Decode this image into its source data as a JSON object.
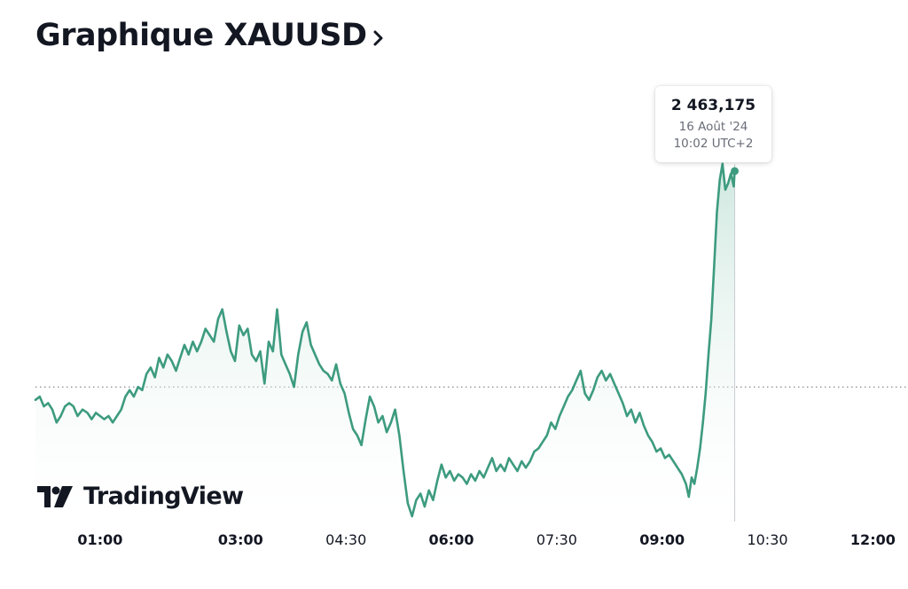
{
  "header": {
    "title": "Graphique XAUUSD",
    "chevron_icon": "chevron-right-icon"
  },
  "tooltip": {
    "price": "2 463,175",
    "date": "16 Août '24",
    "time": "10:02 UTC+2"
  },
  "logo": {
    "text": "TradingView",
    "icon": "tradingview-logo-icon"
  },
  "colors": {
    "line": "#3d9b7f",
    "fill_top": "#bfe0d5",
    "fill_bottom": "#ffffff",
    "text": "#131722",
    "reference_line": "#6a6d78"
  },
  "chart_data": {
    "type": "area",
    "x_unit": "hours (UTC+2, 16 Aug 2024)",
    "x_ticks": [
      {
        "label": "01:00",
        "value": 1.0,
        "bold": true
      },
      {
        "label": "03:00",
        "value": 3.0,
        "bold": true
      },
      {
        "label": "04:30",
        "value": 4.5,
        "bold": false
      },
      {
        "label": "06:00",
        "value": 6.0,
        "bold": true
      },
      {
        "label": "07:30",
        "value": 7.5,
        "bold": false
      },
      {
        "label": "09:00",
        "value": 9.0,
        "bold": true
      },
      {
        "label": "10:30",
        "value": 10.5,
        "bold": false
      },
      {
        "label": "12:00",
        "value": 12.0,
        "bold": true
      }
    ],
    "xlim": [
      0.08,
      12.5
    ],
    "ylim": [
      2452.5,
      2464.9
    ],
    "reference_price": 2456.5,
    "crosshair_x": 10.033,
    "last_price": 2463.175,
    "series": [
      {
        "points": [
          [
            0.08,
            2456.1
          ],
          [
            0.14,
            2456.2
          ],
          [
            0.2,
            2455.9
          ],
          [
            0.26,
            2456.0
          ],
          [
            0.32,
            2455.8
          ],
          [
            0.38,
            2455.4
          ],
          [
            0.44,
            2455.6
          ],
          [
            0.5,
            2455.9
          ],
          [
            0.56,
            2456.0
          ],
          [
            0.62,
            2455.9
          ],
          [
            0.68,
            2455.6
          ],
          [
            0.75,
            2455.8
          ],
          [
            0.82,
            2455.7
          ],
          [
            0.88,
            2455.5
          ],
          [
            0.94,
            2455.7
          ],
          [
            1.0,
            2455.6
          ],
          [
            1.06,
            2455.5
          ],
          [
            1.12,
            2455.6
          ],
          [
            1.18,
            2455.4
          ],
          [
            1.24,
            2455.6
          ],
          [
            1.3,
            2455.8
          ],
          [
            1.36,
            2456.2
          ],
          [
            1.42,
            2456.4
          ],
          [
            1.48,
            2456.2
          ],
          [
            1.54,
            2456.5
          ],
          [
            1.6,
            2456.4
          ],
          [
            1.66,
            2456.9
          ],
          [
            1.72,
            2457.1
          ],
          [
            1.78,
            2456.8
          ],
          [
            1.84,
            2457.4
          ],
          [
            1.9,
            2457.1
          ],
          [
            1.96,
            2457.5
          ],
          [
            2.02,
            2457.3
          ],
          [
            2.08,
            2457.0
          ],
          [
            2.14,
            2457.4
          ],
          [
            2.2,
            2457.8
          ],
          [
            2.26,
            2457.5
          ],
          [
            2.32,
            2457.9
          ],
          [
            2.38,
            2457.6
          ],
          [
            2.44,
            2457.9
          ],
          [
            2.5,
            2458.3
          ],
          [
            2.56,
            2458.1
          ],
          [
            2.62,
            2457.9
          ],
          [
            2.68,
            2458.6
          ],
          [
            2.74,
            2458.9
          ],
          [
            2.8,
            2458.2
          ],
          [
            2.86,
            2457.6
          ],
          [
            2.92,
            2457.3
          ],
          [
            2.98,
            2458.4
          ],
          [
            3.04,
            2458.1
          ],
          [
            3.1,
            2458.3
          ],
          [
            3.16,
            2457.5
          ],
          [
            3.22,
            2457.3
          ],
          [
            3.28,
            2457.6
          ],
          [
            3.34,
            2456.6
          ],
          [
            3.4,
            2457.9
          ],
          [
            3.46,
            2457.6
          ],
          [
            3.52,
            2458.9
          ],
          [
            3.58,
            2457.5
          ],
          [
            3.64,
            2457.2
          ],
          [
            3.7,
            2456.9
          ],
          [
            3.76,
            2456.5
          ],
          [
            3.82,
            2457.5
          ],
          [
            3.88,
            2458.2
          ],
          [
            3.94,
            2458.5
          ],
          [
            4.0,
            2457.8
          ],
          [
            4.06,
            2457.5
          ],
          [
            4.12,
            2457.2
          ],
          [
            4.18,
            2457.0
          ],
          [
            4.24,
            2456.9
          ],
          [
            4.3,
            2456.7
          ],
          [
            4.36,
            2457.2
          ],
          [
            4.42,
            2456.6
          ],
          [
            4.48,
            2456.3
          ],
          [
            4.54,
            2455.7
          ],
          [
            4.6,
            2455.2
          ],
          [
            4.66,
            2455.0
          ],
          [
            4.72,
            2454.7
          ],
          [
            4.78,
            2455.5
          ],
          [
            4.84,
            2456.2
          ],
          [
            4.9,
            2455.9
          ],
          [
            4.96,
            2455.4
          ],
          [
            5.02,
            2455.6
          ],
          [
            5.08,
            2455.1
          ],
          [
            5.14,
            2455.4
          ],
          [
            5.2,
            2455.8
          ],
          [
            5.26,
            2455.0
          ],
          [
            5.32,
            2453.9
          ],
          [
            5.38,
            2452.9
          ],
          [
            5.44,
            2452.5
          ],
          [
            5.5,
            2453.0
          ],
          [
            5.56,
            2453.2
          ],
          [
            5.62,
            2452.8
          ],
          [
            5.68,
            2453.3
          ],
          [
            5.74,
            2453.0
          ],
          [
            5.8,
            2453.6
          ],
          [
            5.86,
            2454.1
          ],
          [
            5.92,
            2453.7
          ],
          [
            5.98,
            2453.9
          ],
          [
            6.04,
            2453.6
          ],
          [
            6.1,
            2453.8
          ],
          [
            6.16,
            2453.7
          ],
          [
            6.22,
            2453.5
          ],
          [
            6.28,
            2453.8
          ],
          [
            6.34,
            2453.6
          ],
          [
            6.4,
            2453.9
          ],
          [
            6.46,
            2453.7
          ],
          [
            6.52,
            2454.0
          ],
          [
            6.58,
            2454.3
          ],
          [
            6.64,
            2453.9
          ],
          [
            6.7,
            2454.1
          ],
          [
            6.76,
            2453.9
          ],
          [
            6.82,
            2454.3
          ],
          [
            6.88,
            2454.1
          ],
          [
            6.94,
            2453.9
          ],
          [
            7.0,
            2454.2
          ],
          [
            7.06,
            2454.0
          ],
          [
            7.12,
            2454.2
          ],
          [
            7.18,
            2454.5
          ],
          [
            7.24,
            2454.6
          ],
          [
            7.3,
            2454.8
          ],
          [
            7.36,
            2455.0
          ],
          [
            7.42,
            2455.4
          ],
          [
            7.48,
            2455.2
          ],
          [
            7.54,
            2455.6
          ],
          [
            7.6,
            2455.9
          ],
          [
            7.66,
            2456.2
          ],
          [
            7.72,
            2456.4
          ],
          [
            7.78,
            2456.7
          ],
          [
            7.84,
            2457.0
          ],
          [
            7.9,
            2456.3
          ],
          [
            7.96,
            2456.1
          ],
          [
            8.02,
            2456.4
          ],
          [
            8.08,
            2456.8
          ],
          [
            8.14,
            2457.0
          ],
          [
            8.2,
            2456.7
          ],
          [
            8.26,
            2456.9
          ],
          [
            8.32,
            2456.6
          ],
          [
            8.38,
            2456.3
          ],
          [
            8.44,
            2456.0
          ],
          [
            8.5,
            2455.6
          ],
          [
            8.56,
            2455.8
          ],
          [
            8.62,
            2455.4
          ],
          [
            8.68,
            2455.7
          ],
          [
            8.74,
            2455.3
          ],
          [
            8.8,
            2455.0
          ],
          [
            8.86,
            2454.8
          ],
          [
            8.92,
            2454.5
          ],
          [
            8.98,
            2454.6
          ],
          [
            9.04,
            2454.3
          ],
          [
            9.1,
            2454.4
          ],
          [
            9.16,
            2454.2
          ],
          [
            9.22,
            2454.0
          ],
          [
            9.28,
            2453.8
          ],
          [
            9.34,
            2453.5
          ],
          [
            9.38,
            2453.1
          ],
          [
            9.42,
            2453.7
          ],
          [
            9.46,
            2453.5
          ],
          [
            9.5,
            2454.0
          ],
          [
            9.54,
            2454.6
          ],
          [
            9.58,
            2455.4
          ],
          [
            9.62,
            2456.3
          ],
          [
            9.66,
            2457.5
          ],
          [
            9.7,
            2458.6
          ],
          [
            9.74,
            2460.2
          ],
          [
            9.78,
            2461.9
          ],
          [
            9.82,
            2462.9
          ],
          [
            9.86,
            2463.4
          ],
          [
            9.9,
            2462.6
          ],
          [
            9.94,
            2462.8
          ],
          [
            9.98,
            2463.1
          ],
          [
            10.02,
            2462.7
          ],
          [
            10.033,
            2463.175
          ]
        ]
      }
    ]
  }
}
